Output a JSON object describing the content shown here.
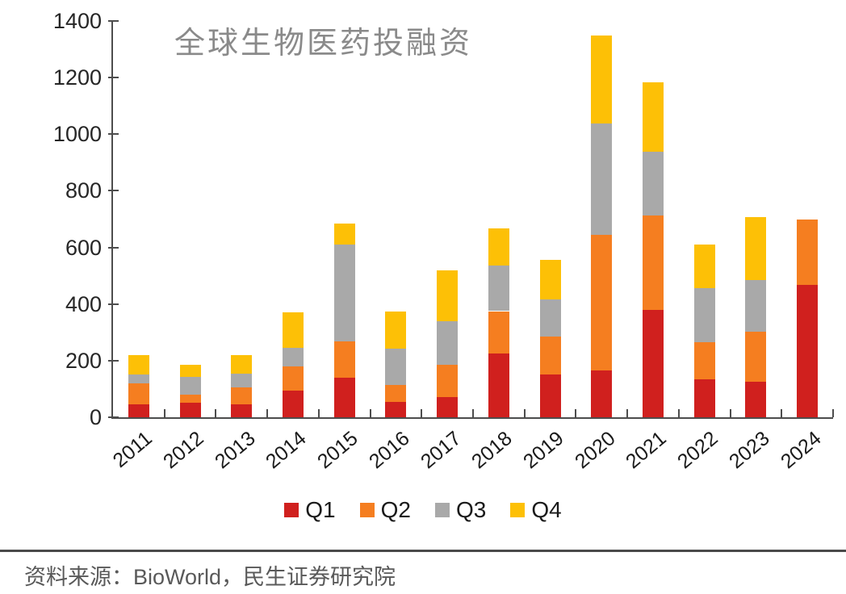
{
  "chart_data": {
    "type": "bar",
    "stacked": true,
    "title": "全球生物医药投融资",
    "categories": [
      "2011",
      "2012",
      "2013",
      "2014",
      "2015",
      "2016",
      "2017",
      "2018",
      "2019",
      "2020",
      "2021",
      "2022",
      "2023",
      "2024"
    ],
    "series": [
      {
        "name": "Q1",
        "color": "#d0201e",
        "values": [
          45,
          50,
          45,
          95,
          140,
          55,
          72,
          225,
          152,
          165,
          378,
          133,
          125,
          468
        ]
      },
      {
        "name": "Q2",
        "color": "#f57e20",
        "values": [
          75,
          30,
          60,
          85,
          128,
          60,
          112,
          150,
          133,
          480,
          334,
          133,
          176,
          232
        ]
      },
      {
        "name": "Q3",
        "color": "#a9a9a9",
        "values": [
          30,
          62,
          50,
          65,
          342,
          128,
          155,
          160,
          132,
          393,
          225,
          190,
          184,
          0
        ]
      },
      {
        "name": "Q4",
        "color": "#fdc006",
        "values": [
          70,
          43,
          65,
          125,
          75,
          132,
          180,
          133,
          138,
          310,
          246,
          153,
          222,
          0
        ]
      }
    ],
    "xlabel": "",
    "ylabel": "",
    "ylim": [
      0,
      1400
    ],
    "y_ticks": [
      0,
      200,
      400,
      600,
      800,
      1000,
      1200,
      1400
    ],
    "grid": false,
    "legend_position": "bottom",
    "axis_color": "#4d4d4d",
    "title_color": "#8a8a8a"
  },
  "source": {
    "text": "资料来源：BioWorld，民生证券研究院"
  }
}
